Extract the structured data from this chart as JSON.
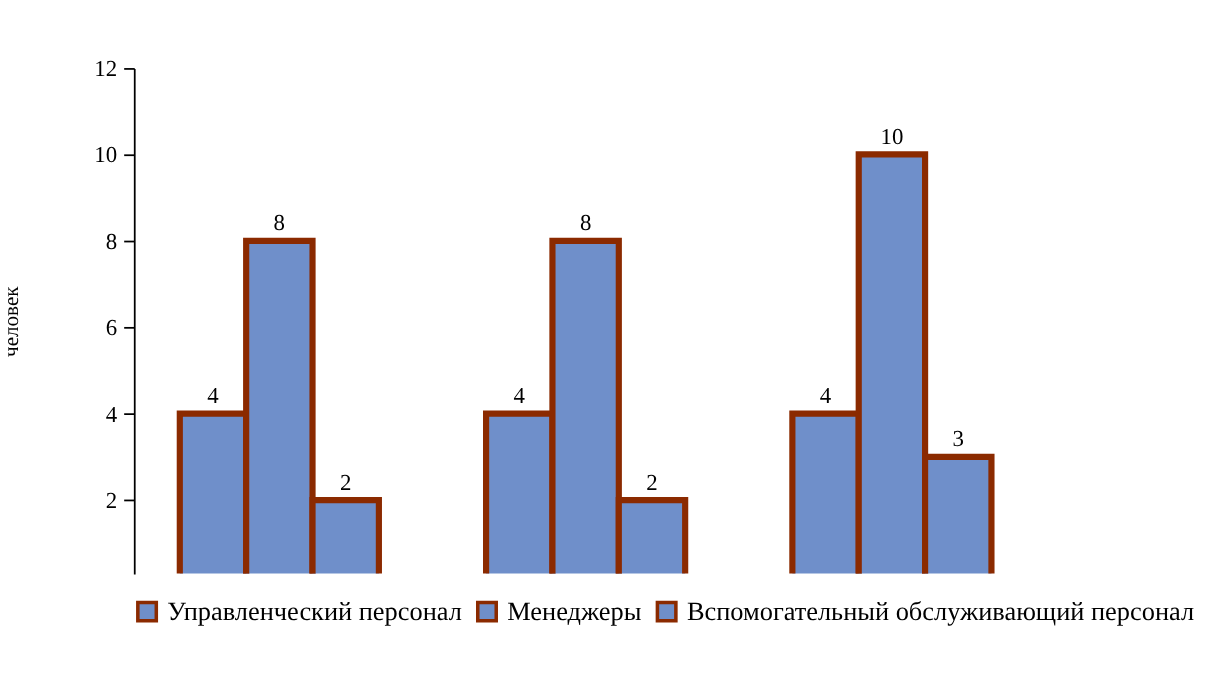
{
  "chart_data": {
    "type": "bar",
    "ylabel": "человек",
    "categories": [
      null,
      null,
      null
    ],
    "series": [
      {
        "name": "Управленческий персонал",
        "color": "#6f8fca",
        "values": [
          4,
          4,
          4
        ]
      },
      {
        "name": "Менеджеры",
        "color": "#6f8fca",
        "values": [
          8,
          8,
          10
        ]
      },
      {
        "name": "Вспомогательный обслуживающий персонал",
        "color": "#6f8fca",
        "values": [
          2,
          2,
          3
        ]
      }
    ],
    "ylim": [
      0.3,
      12
    ],
    "yticks": [
      2,
      4,
      6,
      8,
      10,
      12
    ],
    "grid": false,
    "legend": "bottom",
    "data_labels": true,
    "tick_labels": "y"
  }
}
